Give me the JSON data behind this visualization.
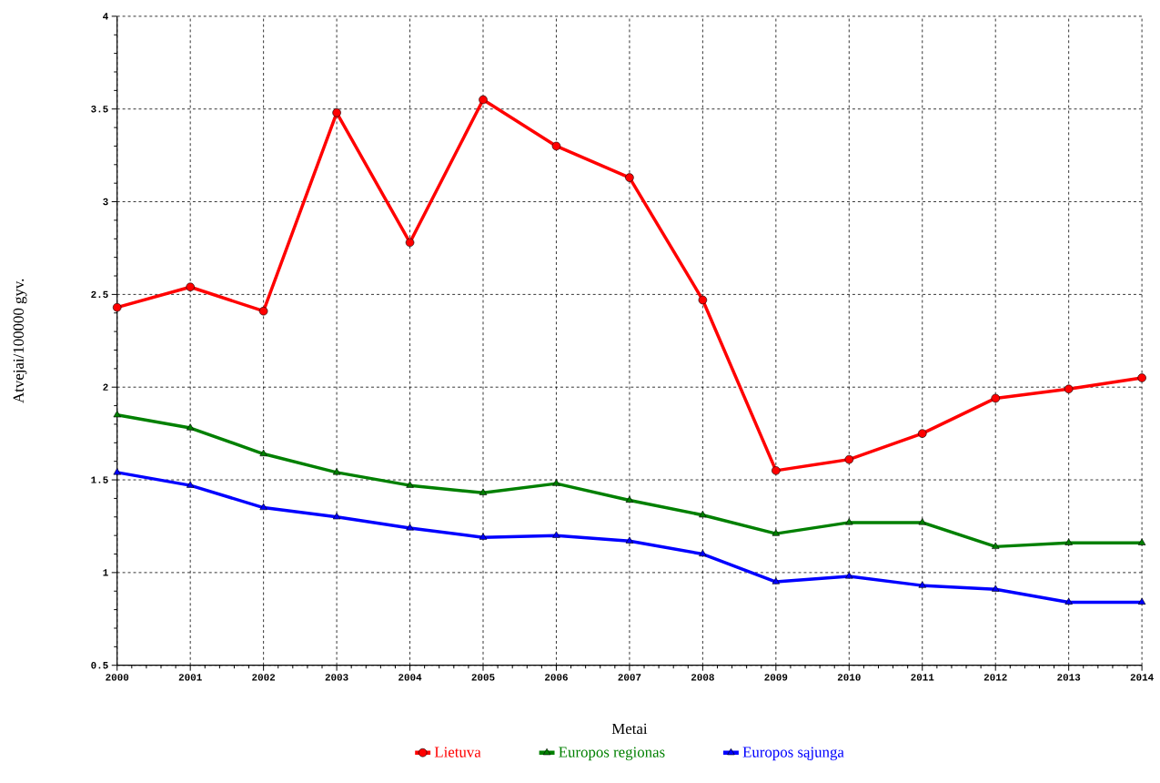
{
  "chart_data": {
    "type": "line",
    "xlabel": "Metai",
    "ylabel": "Atvejai/100000 gyv.",
    "x": [
      2000,
      2001,
      2002,
      2003,
      2004,
      2005,
      2006,
      2007,
      2008,
      2009,
      2010,
      2011,
      2012,
      2013,
      2014
    ],
    "series": [
      {
        "name": "Lietuva",
        "color": "#ff0000",
        "marker": "circle",
        "values": [
          2.43,
          2.54,
          2.41,
          3.48,
          2.78,
          3.55,
          3.3,
          3.13,
          2.47,
          1.55,
          1.61,
          1.75,
          1.94,
          1.99,
          2.05
        ]
      },
      {
        "name": "Europos regionas",
        "color": "#008000",
        "marker": "triangle-down",
        "values": [
          1.85,
          1.78,
          1.64,
          1.54,
          1.47,
          1.43,
          1.48,
          1.39,
          1.31,
          1.21,
          1.27,
          1.27,
          1.14,
          1.16,
          1.16
        ]
      },
      {
        "name": "Europos sąjunga",
        "color": "#0000ff",
        "marker": "triangle",
        "values": [
          1.54,
          1.47,
          1.35,
          1.3,
          1.24,
          1.19,
          1.2,
          1.17,
          1.1,
          0.95,
          0.98,
          0.93,
          0.91,
          0.84,
          0.84
        ]
      }
    ],
    "xlim": [
      2000,
      2014
    ],
    "ylim": [
      0.5,
      4
    ],
    "xticks": [
      2000,
      2001,
      2002,
      2003,
      2004,
      2005,
      2006,
      2007,
      2008,
      2009,
      2010,
      2011,
      2012,
      2013,
      2014
    ],
    "yticks": [
      0.5,
      1,
      1.5,
      2,
      2.5,
      3,
      3.5,
      4
    ],
    "grid": true,
    "legend": "bottom",
    "line_style": "solid"
  }
}
